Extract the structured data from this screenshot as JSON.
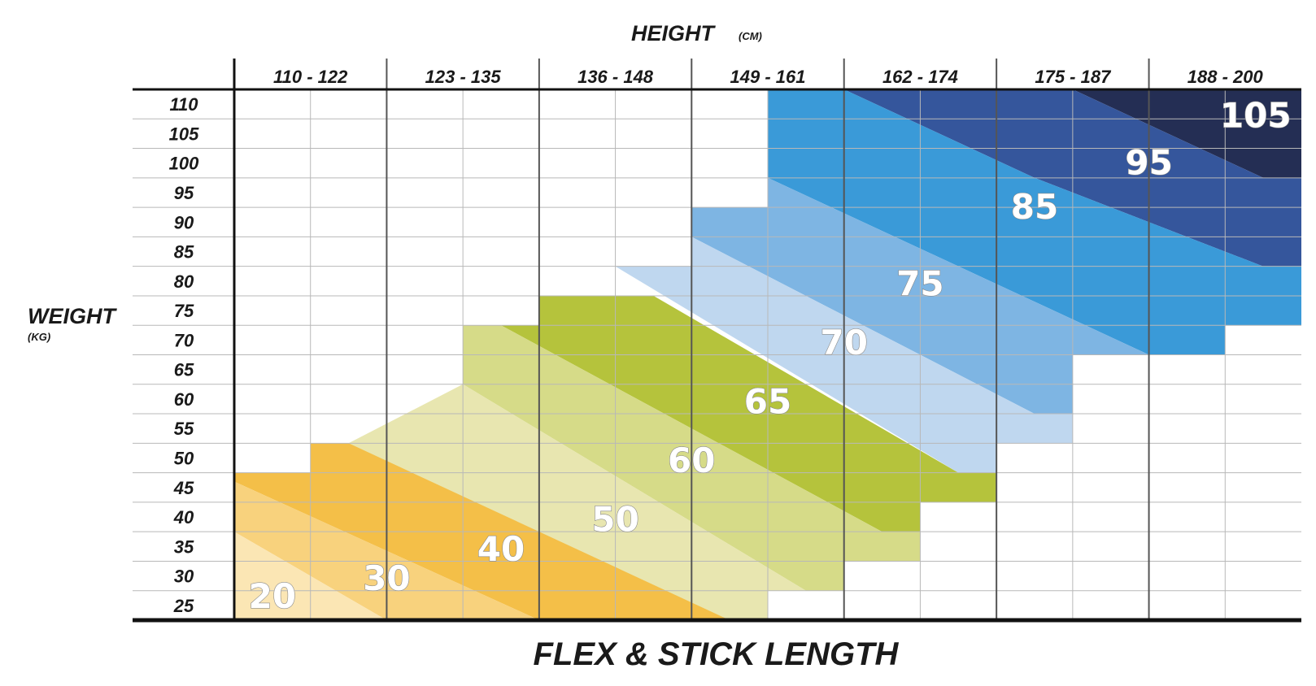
{
  "chart_data": {
    "type": "heatmap",
    "title": "FLEX & STICK LENGTH",
    "x_axis": {
      "label": "HEIGHT",
      "unit": "(CM)"
    },
    "y_axis": {
      "label": "WEIGHT",
      "unit": "(KG)"
    },
    "height_ranges": [
      "110 - 122",
      "123 - 135",
      "136 - 148",
      "149 - 161",
      "162 - 174",
      "175 - 187",
      "188 - 200"
    ],
    "weights": [
      "110",
      "105",
      "100",
      "95",
      "90",
      "85",
      "80",
      "75",
      "70",
      "65",
      "60",
      "55",
      "50",
      "45",
      "40",
      "35",
      "30",
      "25"
    ],
    "flex_values": [
      "20",
      "30",
      "40",
      "50",
      "60",
      "65",
      "70",
      "75",
      "85",
      "95",
      "105"
    ],
    "grid": true
  },
  "colors": {
    "flex_20": "#fbe6b4",
    "flex_30": "#f8d27d",
    "flex_40": "#f4bf48",
    "flex_50": "#e8e6b0",
    "flex_60": "#d6db88",
    "flex_65": "#b5c33c",
    "flex_70": "#bfd7ef",
    "flex_75": "#7eb5e3",
    "flex_85": "#3a9ad8",
    "flex_95": "#35569c",
    "flex_105": "#242e54",
    "grid_line": "#b8b8b8",
    "major_line": "#555555",
    "axis_line": "#111111"
  }
}
